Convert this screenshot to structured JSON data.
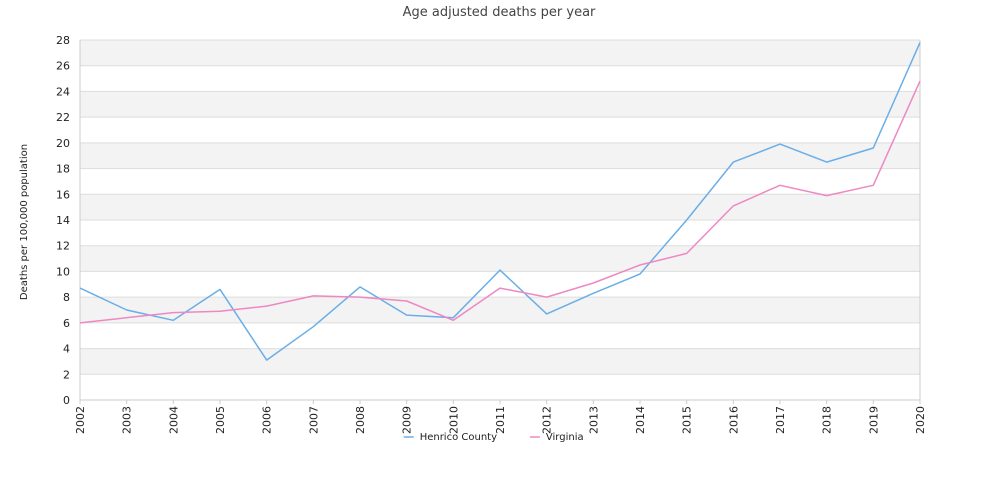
{
  "chart_data": {
    "type": "line",
    "title": "Age adjusted deaths per year",
    "ylabel": "Deaths per 100,000 population",
    "xlabel": "",
    "ylim": [
      0,
      28
    ],
    "yticks": [
      "0",
      "2",
      "4",
      "6",
      "8",
      "10",
      "12",
      "14",
      "16",
      "18",
      "20",
      "22",
      "24",
      "26",
      "28"
    ],
    "x": [
      "2002",
      "2003",
      "2004",
      "2005",
      "2006",
      "2007",
      "2008",
      "2009",
      "2010",
      "2011",
      "2012",
      "2013",
      "2014",
      "2015",
      "2016",
      "2017",
      "2018",
      "2019",
      "2020"
    ],
    "grid": true,
    "legend_position": "bottom",
    "series": [
      {
        "name": "Henrico County",
        "color": "#6aaee8",
        "values": [
          8.7,
          7.0,
          6.2,
          8.6,
          3.1,
          5.7,
          8.8,
          6.6,
          6.4,
          10.1,
          6.7,
          8.3,
          9.8,
          14.0,
          18.5,
          19.9,
          18.5,
          19.6,
          27.8
        ]
      },
      {
        "name": "Virginia",
        "color": "#ee88c2",
        "values": [
          6.0,
          6.4,
          6.8,
          6.9,
          7.3,
          8.1,
          8.0,
          7.7,
          6.2,
          8.7,
          8.0,
          9.1,
          10.5,
          11.4,
          15.1,
          16.7,
          15.9,
          16.7,
          24.8
        ]
      }
    ]
  }
}
